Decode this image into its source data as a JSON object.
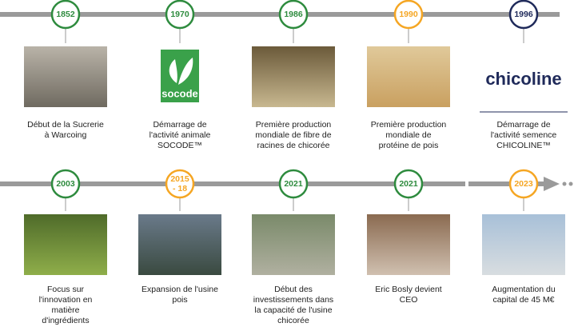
{
  "timeline": {
    "rows": [
      {
        "items": [
          {
            "year": "1852",
            "color": "#2e8b3e",
            "lines": [
              "Début de la Sucrerie",
              "à Warcoing"
            ]
          },
          {
            "year": "1970",
            "color": "#2e8b3e",
            "logo": "socode",
            "lines": [
              "Démarrage de",
              "l'activité animale",
              "SOCODE™"
            ]
          },
          {
            "year": "1986",
            "color": "#2e8b3e",
            "lines": [
              "Première production",
              "mondiale de fibre de",
              "racines de chicorée"
            ]
          },
          {
            "year": "1990",
            "color": "#f5a623",
            "lines": [
              "Première production",
              "mondiale de",
              "protéine de pois"
            ]
          },
          {
            "year": "1996",
            "color": "#1f2a5a",
            "logo": "chicoline",
            "lines": [
              "Démarrage de",
              "l'activité semence",
              "CHICOLINE™"
            ]
          }
        ]
      },
      {
        "items": [
          {
            "year": "2003",
            "color": "#2e8b3e",
            "lines": [
              "Focus sur",
              "l'innovation en",
              "matière",
              "d'ingrédients"
            ]
          },
          {
            "year": [
              "2015",
              "- 18"
            ],
            "color": "#f5a623",
            "lines": [
              "Expansion de l'usine",
              "pois"
            ]
          },
          {
            "year": "2021",
            "color": "#2e8b3e",
            "lines": [
              "Début des",
              "investissements dans",
              "la capacité de l'usine",
              "chicorée"
            ]
          },
          {
            "year": "2021",
            "color": "#2e8b3e",
            "lines": [
              "Eric Bosly devient",
              "CEO"
            ]
          },
          {
            "year": "2023",
            "color": "#f5a623",
            "lines": [
              "Augmentation du",
              "capital de 45 M€"
            ]
          }
        ]
      }
    ]
  }
}
